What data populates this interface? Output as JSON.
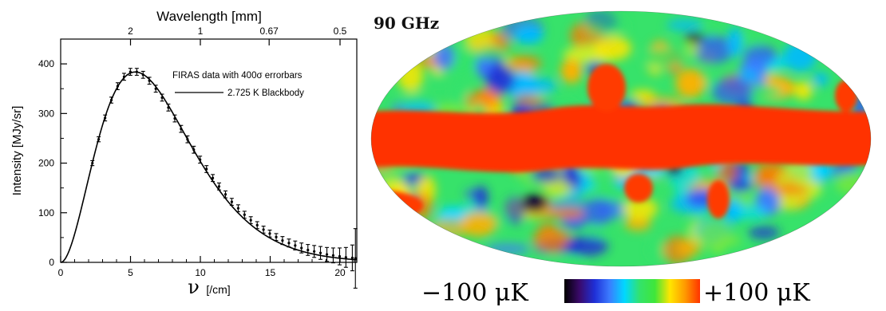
{
  "chart_data": [
    {
      "type": "line",
      "title": "",
      "top_axis": {
        "label": "Wavelength [mm]",
        "ticks": [
          {
            "label": "2",
            "nu": 5.0
          },
          {
            "label": "1",
            "nu": 10.0
          },
          {
            "label": "0.67",
            "nu": 14.925
          },
          {
            "label": "0.5",
            "nu": 20.0
          }
        ]
      },
      "xlabel_symbol": "ν",
      "xlabel_unit": "[/cm]",
      "ylabel": "Intensity [MJy/sr]",
      "xlim": [
        0,
        21.2
      ],
      "ylim": [
        0,
        450
      ],
      "xticks": [
        0,
        5,
        10,
        15,
        20
      ],
      "yticks": [
        0,
        100,
        200,
        300,
        400
      ],
      "grid": false,
      "legend": {
        "position": "top-right",
        "entries": [
          "FIRAS data with 400σ errorbars",
          "2.725 K Blackbody"
        ]
      },
      "series": [
        {
          "name": "FIRAS data with 400σ errorbars",
          "kind": "points-with-errorbars",
          "x": [
            2.27,
            2.72,
            3.18,
            3.63,
            4.08,
            4.54,
            4.99,
            5.45,
            5.9,
            6.35,
            6.81,
            7.26,
            7.71,
            8.17,
            8.62,
            9.08,
            9.53,
            9.98,
            10.44,
            10.89,
            11.34,
            11.8,
            12.25,
            12.71,
            13.16,
            13.61,
            14.07,
            14.52,
            14.97,
            15.43,
            15.88,
            16.34,
            16.79,
            17.24,
            17.7,
            18.15,
            18.6,
            19.06,
            19.51,
            19.97,
            20.42,
            20.88,
            21.1
          ],
          "y": [
            200,
            248,
            291,
            327,
            355,
            374,
            384,
            384,
            378,
            366,
            350,
            332,
            312,
            290,
            269,
            248,
            227,
            207,
            188,
            170,
            153,
            137,
            122,
            109,
            96,
            85,
            75,
            66,
            58,
            51,
            44,
            39,
            34,
            29,
            25,
            22,
            19,
            16,
            14,
            12,
            10,
            9,
            8
          ],
          "yerr": [
            5,
            5,
            6,
            6,
            7,
            7,
            7,
            7,
            7,
            7,
            7,
            7,
            7,
            7,
            7,
            7,
            7,
            7,
            7,
            7,
            7,
            7,
            7,
            7,
            7,
            7,
            7,
            7,
            7,
            7,
            8,
            8,
            9,
            10,
            11,
            12,
            13,
            14,
            15,
            17,
            20,
            26,
            60
          ]
        },
        {
          "name": "2.725 K Blackbody",
          "kind": "model-curve",
          "temperature_K": 2.725
        }
      ]
    },
    {
      "type": "heatmap",
      "title": "90 GHz",
      "projection": "mollweide",
      "colorbar": {
        "min_label": "−100 μK",
        "max_label": "+100 μK",
        "colors": [
          "#000000",
          "#3a0a6a",
          "#1f2fd6",
          "#3b7cff",
          "#00d8ff",
          "#33e36b",
          "#3fe63a",
          "#ffe600",
          "#ff9a00",
          "#ff3300"
        ]
      }
    }
  ]
}
